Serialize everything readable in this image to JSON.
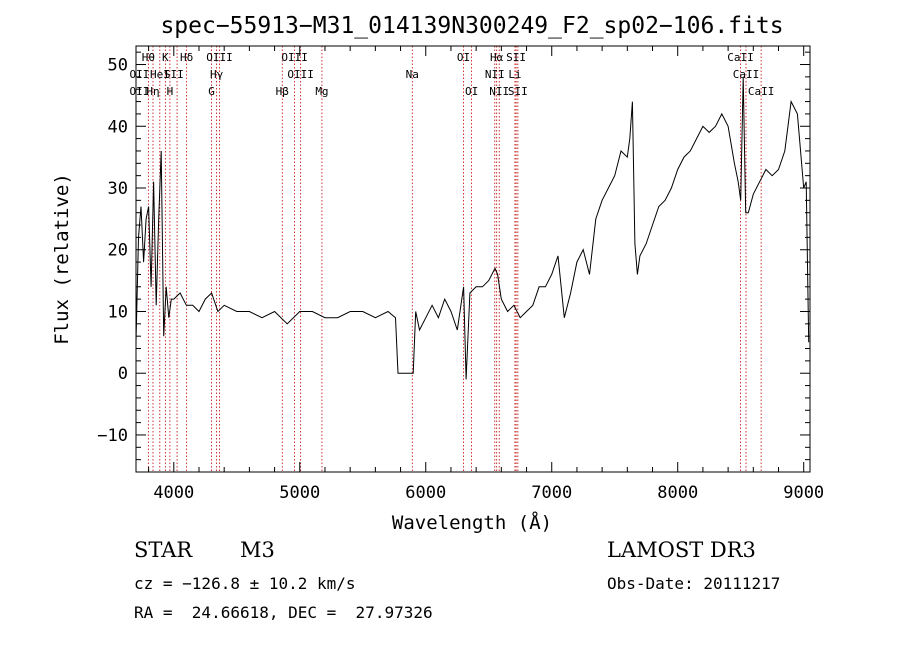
{
  "chart_data": {
    "type": "line",
    "title": "spec−55913−M31_014139N300249_F2_sp02−106.fits",
    "xlabel": "Wavelength (Å)",
    "ylabel": "Flux (relative)",
    "xlim": [
      3700,
      9050
    ],
    "ylim": [
      -16,
      53
    ],
    "x_ticks": [
      4000,
      5000,
      6000,
      7000,
      8000,
      9000
    ],
    "y_ticks": [
      -10,
      0,
      10,
      20,
      30,
      40,
      50
    ],
    "y_tick_labels": [
      "−10",
      "0",
      "10",
      "20",
      "30",
      "40",
      "50"
    ],
    "grid": false,
    "series": [
      {
        "color": "#000000",
        "x": [
          3700,
          3720,
          3740,
          3760,
          3780,
          3800,
          3820,
          3840,
          3860,
          3880,
          3900,
          3920,
          3940,
          3960,
          3980,
          4000,
          4050,
          4100,
          4150,
          4200,
          4250,
          4300,
          4350,
          4400,
          4500,
          4600,
          4700,
          4800,
          4900,
          5000,
          5100,
          5200,
          5300,
          5400,
          5500,
          5600,
          5700,
          5760,
          5780,
          5900,
          5920,
          5950,
          6000,
          6050,
          6100,
          6150,
          6200,
          6250,
          6300,
          6320,
          6350,
          6400,
          6450,
          6500,
          6550,
          6570,
          6600,
          6650,
          6700,
          6750,
          6800,
          6850,
          6900,
          6950,
          7000,
          7050,
          7100,
          7150,
          7200,
          7250,
          7300,
          7350,
          7400,
          7450,
          7500,
          7550,
          7600,
          7620,
          7640,
          7660,
          7680,
          7700,
          7750,
          7800,
          7850,
          7900,
          7950,
          8000,
          8050,
          8100,
          8150,
          8200,
          8250,
          8300,
          8350,
          8400,
          8450,
          8480,
          8500,
          8520,
          8540,
          8560,
          8600,
          8650,
          8700,
          8750,
          8800,
          8850,
          8900,
          8950,
          9000,
          9020,
          9040
        ],
        "y": [
          5,
          22,
          27,
          18,
          25,
          27,
          14,
          31,
          11,
          25,
          36,
          6,
          14,
          9,
          12,
          12,
          13,
          11,
          11,
          10,
          12,
          13,
          10,
          11,
          10,
          10,
          9,
          10,
          8,
          10,
          10,
          9,
          9,
          10,
          10,
          9,
          10,
          9,
          0,
          0,
          10,
          7,
          9,
          11,
          9,
          12,
          10,
          7,
          14,
          -1,
          13,
          14,
          14,
          15,
          17,
          16,
          12,
          10,
          11,
          9,
          10,
          11,
          14,
          14,
          16,
          19,
          9,
          13,
          18,
          20,
          16,
          25,
          28,
          30,
          32,
          36,
          35,
          38,
          44,
          21,
          16,
          19,
          21,
          24,
          27,
          28,
          30,
          33,
          35,
          36,
          38,
          40,
          39,
          40,
          42,
          40,
          34,
          31,
          28,
          48,
          26,
          26,
          29,
          31,
          33,
          32,
          33,
          36,
          44,
          42,
          30,
          31,
          5
        ]
      }
    ],
    "line_markers": {
      "color": "#c00000",
      "wavelengths": [
        3798,
        3835,
        3889,
        3933,
        3969,
        4026,
        4102,
        4300,
        4340,
        4363,
        4861,
        4959,
        5007,
        5176,
        5893,
        6300,
        6364,
        6548,
        6563,
        6583,
        6708,
        6717,
        6731,
        8498,
        8542,
        8662
      ],
      "label_rows": [
        [
          {
            "x": 3798,
            "label": "Hθ"
          },
          {
            "x": 3933,
            "label": "K"
          },
          {
            "x": 4102,
            "label": "Hδ"
          },
          {
            "x": 4363,
            "label": "OIII"
          },
          {
            "x": 4959,
            "label": "OIII"
          },
          {
            "x": 6300,
            "label": "OI"
          },
          {
            "x": 6563,
            "label": "Hα"
          },
          {
            "x": 6717,
            "label": "SII"
          },
          {
            "x": 8498,
            "label": "CaII"
          }
        ],
        [
          {
            "x": 3727,
            "label": "OII"
          },
          {
            "x": 3890,
            "label": "HeI"
          },
          {
            "x": 4000,
            "label": "SII"
          },
          {
            "x": 4340,
            "label": "Hγ"
          },
          {
            "x": 5007,
            "label": "OIII"
          },
          {
            "x": 5893,
            "label": "Na"
          },
          {
            "x": 6548,
            "label": "NII"
          },
          {
            "x": 6708,
            "label": "Li"
          },
          {
            "x": 8542,
            "label": "CaII"
          }
        ],
        [
          {
            "x": 3727,
            "label": "OII"
          },
          {
            "x": 3835,
            "label": "Hη"
          },
          {
            "x": 3969,
            "label": "H"
          },
          {
            "x": 4300,
            "label": "G"
          },
          {
            "x": 4861,
            "label": "Hβ"
          },
          {
            "x": 5176,
            "label": "Mg"
          },
          {
            "x": 6364,
            "label": "OI"
          },
          {
            "x": 6583,
            "label": "NII"
          },
          {
            "x": 6731,
            "label": "SII"
          },
          {
            "x": 8662,
            "label": "CaII"
          }
        ]
      ]
    }
  },
  "info": {
    "object_class": "STAR",
    "subclass": "M3",
    "survey": "LAMOST DR3",
    "cz": "cz = −126.8 ± 10.2 km/s",
    "obs_date": "Obs-Date: 20111217",
    "radec": "RA =  24.66618, DEC =  27.97326"
  }
}
